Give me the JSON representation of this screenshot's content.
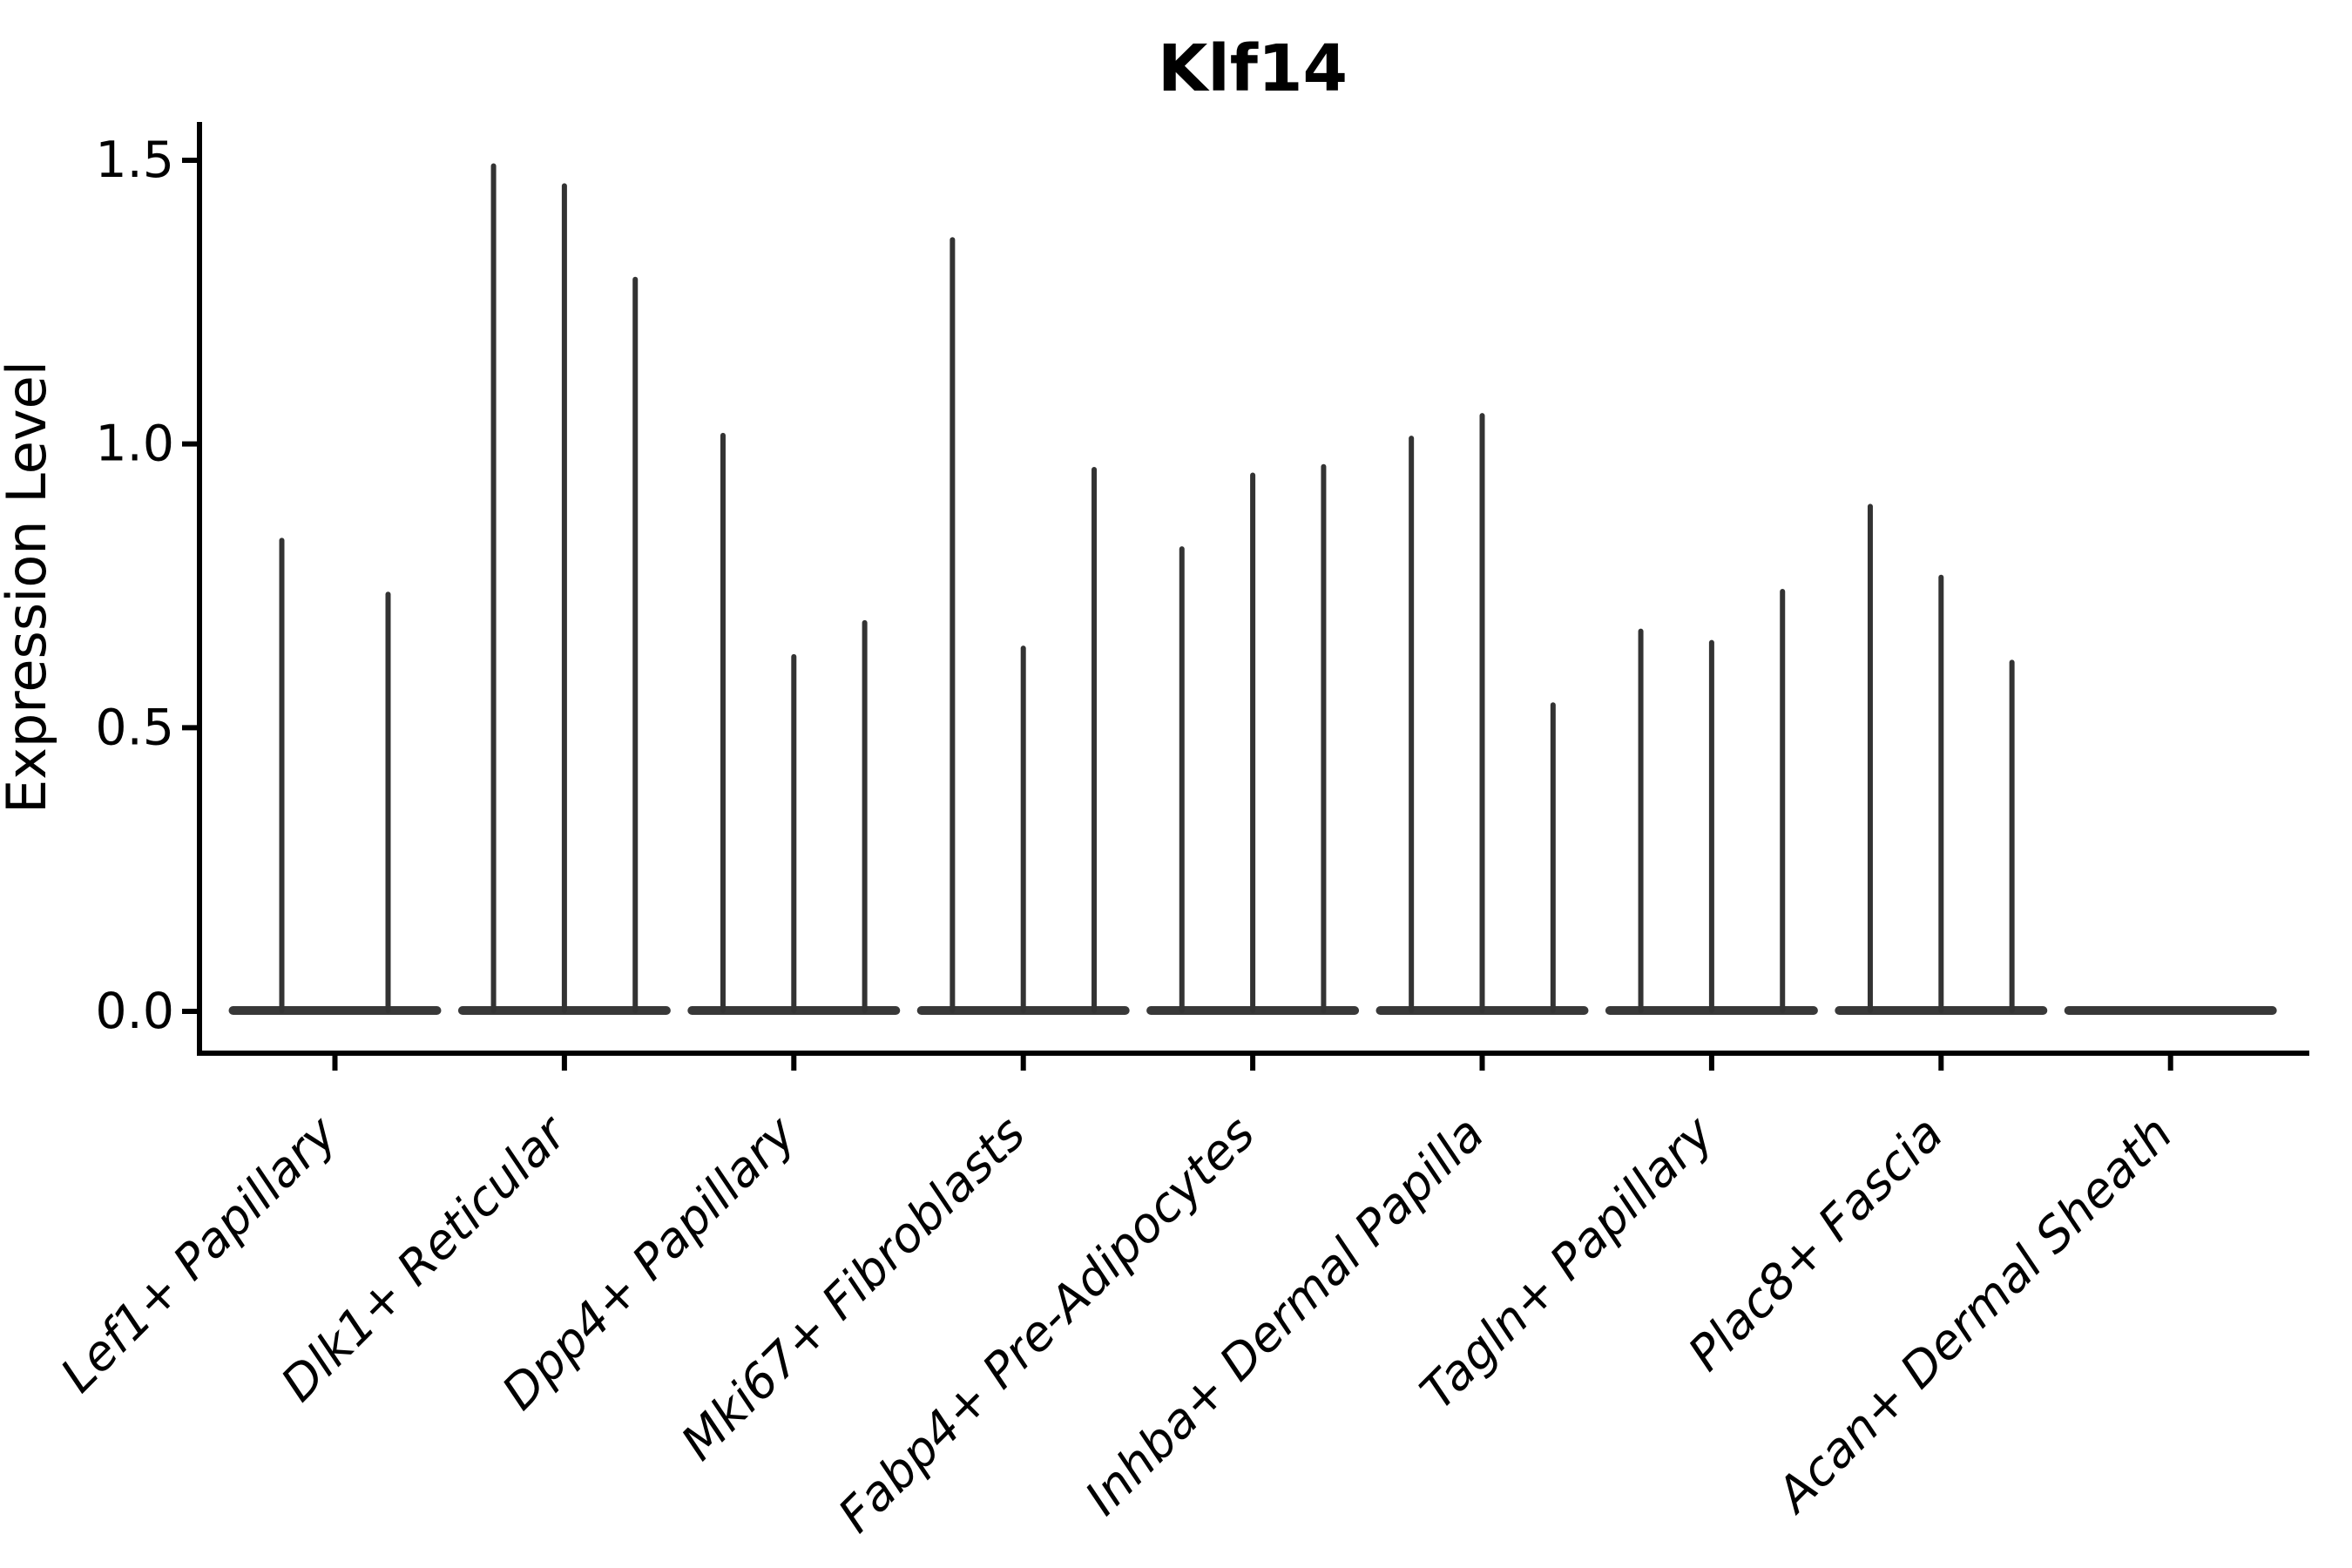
{
  "chart_data": {
    "type": "violin",
    "title": "Klf14",
    "xlabel": "",
    "ylabel": "Expression Level",
    "categories": [
      "Lef1+ Papillary",
      "Dlk1+ Reticular",
      "Dpp4+ Papillary",
      "Mki67+ Fibroblasts",
      "Fabp4+ Pre-Adipocytes",
      "Inhba+ Dermal Papilla",
      "Tagln+ Papillary",
      "Plac8+ Fascia",
      "Acan+ Dermal Sheath"
    ],
    "violin_max_per_category": [
      [
        0.83,
        0.735
      ],
      [
        1.49,
        1.455,
        1.29
      ],
      [
        1.015,
        0.625,
        0.685
      ],
      [
        1.36,
        0.64,
        0.955
      ],
      [
        0.815,
        0.945,
        0.96
      ],
      [
        1.01,
        1.05,
        0.54
      ],
      [
        0.67,
        0.65,
        0.74
      ],
      [
        0.89,
        0.765,
        0.615
      ],
      [
        0,
        0,
        0
      ]
    ],
    "yticks": [
      0.0,
      0.5,
      1.0,
      1.5
    ],
    "ytick_labels": [
      "0.0",
      "0.5",
      "1.0",
      "1.5"
    ],
    "ylim": [
      -0.072,
      1.568
    ],
    "xtick_rotation_deg": 45,
    "xtick_font_style": "italic",
    "grid": false,
    "legend": false,
    "spines": [
      "left",
      "bottom"
    ],
    "colors": {
      "spike": "#333333",
      "baseline_strip": "#383838",
      "axis": "#000000",
      "text": "#000000",
      "background": "#ffffff"
    },
    "note": "Zero-inflated expression violins: each violin collapses to a flat strip at 0 with a thin spike reaching its maximum expression value. Acan+ Dermal Sheath shows no expression (flat baseline only)."
  }
}
